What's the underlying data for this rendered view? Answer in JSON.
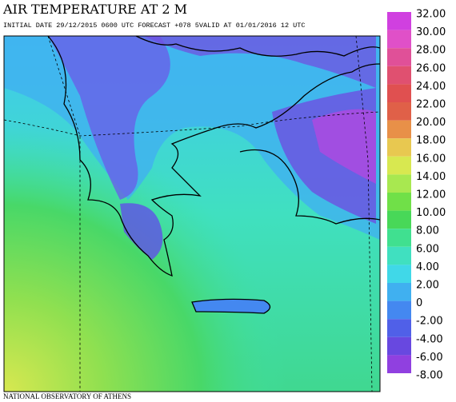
{
  "header": {
    "title": "AIR TEMPERATURE AT 2 M",
    "subtitle": "INITIAL DATE 29/12/2015   0600 UTC FORECAST +078 5VALID AT  01/01/2016  12 UTC"
  },
  "colorbar": {
    "ticks": [
      {
        "value": 32,
        "label": "32.00"
      },
      {
        "value": 30,
        "label": "30.00"
      },
      {
        "value": 28,
        "label": "28.00"
      },
      {
        "value": 26,
        "label": "26.00"
      },
      {
        "value": 24,
        "label": "24.00"
      },
      {
        "value": 22,
        "label": "22.00"
      },
      {
        "value": 20,
        "label": "20.00"
      },
      {
        "value": 18,
        "label": "18.00"
      },
      {
        "value": 16,
        "label": "16.00"
      },
      {
        "value": 14,
        "label": "14.00"
      },
      {
        "value": 12,
        "label": "12.00"
      },
      {
        "value": 10,
        "label": "10.00"
      },
      {
        "value": 8,
        "label": "8.00"
      },
      {
        "value": 6,
        "label": "6.00"
      },
      {
        "value": 4,
        "label": "4.00"
      },
      {
        "value": 2,
        "label": "2.00"
      },
      0,
      {
        "value": -2,
        "label": "-2.00"
      },
      {
        "value": -4,
        "label": "-4.00"
      },
      {
        "value": -6,
        "label": "-6.00"
      },
      {
        "value": -8,
        "label": "-8.00"
      }
    ],
    "colors": [
      "#d040e0",
      "#e050c8",
      "#e05098",
      "#e05070",
      "#e05050",
      "#e06048",
      "#e89048",
      "#e8c850",
      "#d8e850",
      "#a8e850",
      "#70e048",
      "#48d858",
      "#40e090",
      "#40e0c0",
      "#40d8e8",
      "#40b0f0",
      "#4488f0",
      "#5060e8",
      "#6848e0",
      "#9040e0"
    ]
  },
  "footer": "NATIONAL OBSERVATORY OF ATHENS"
}
